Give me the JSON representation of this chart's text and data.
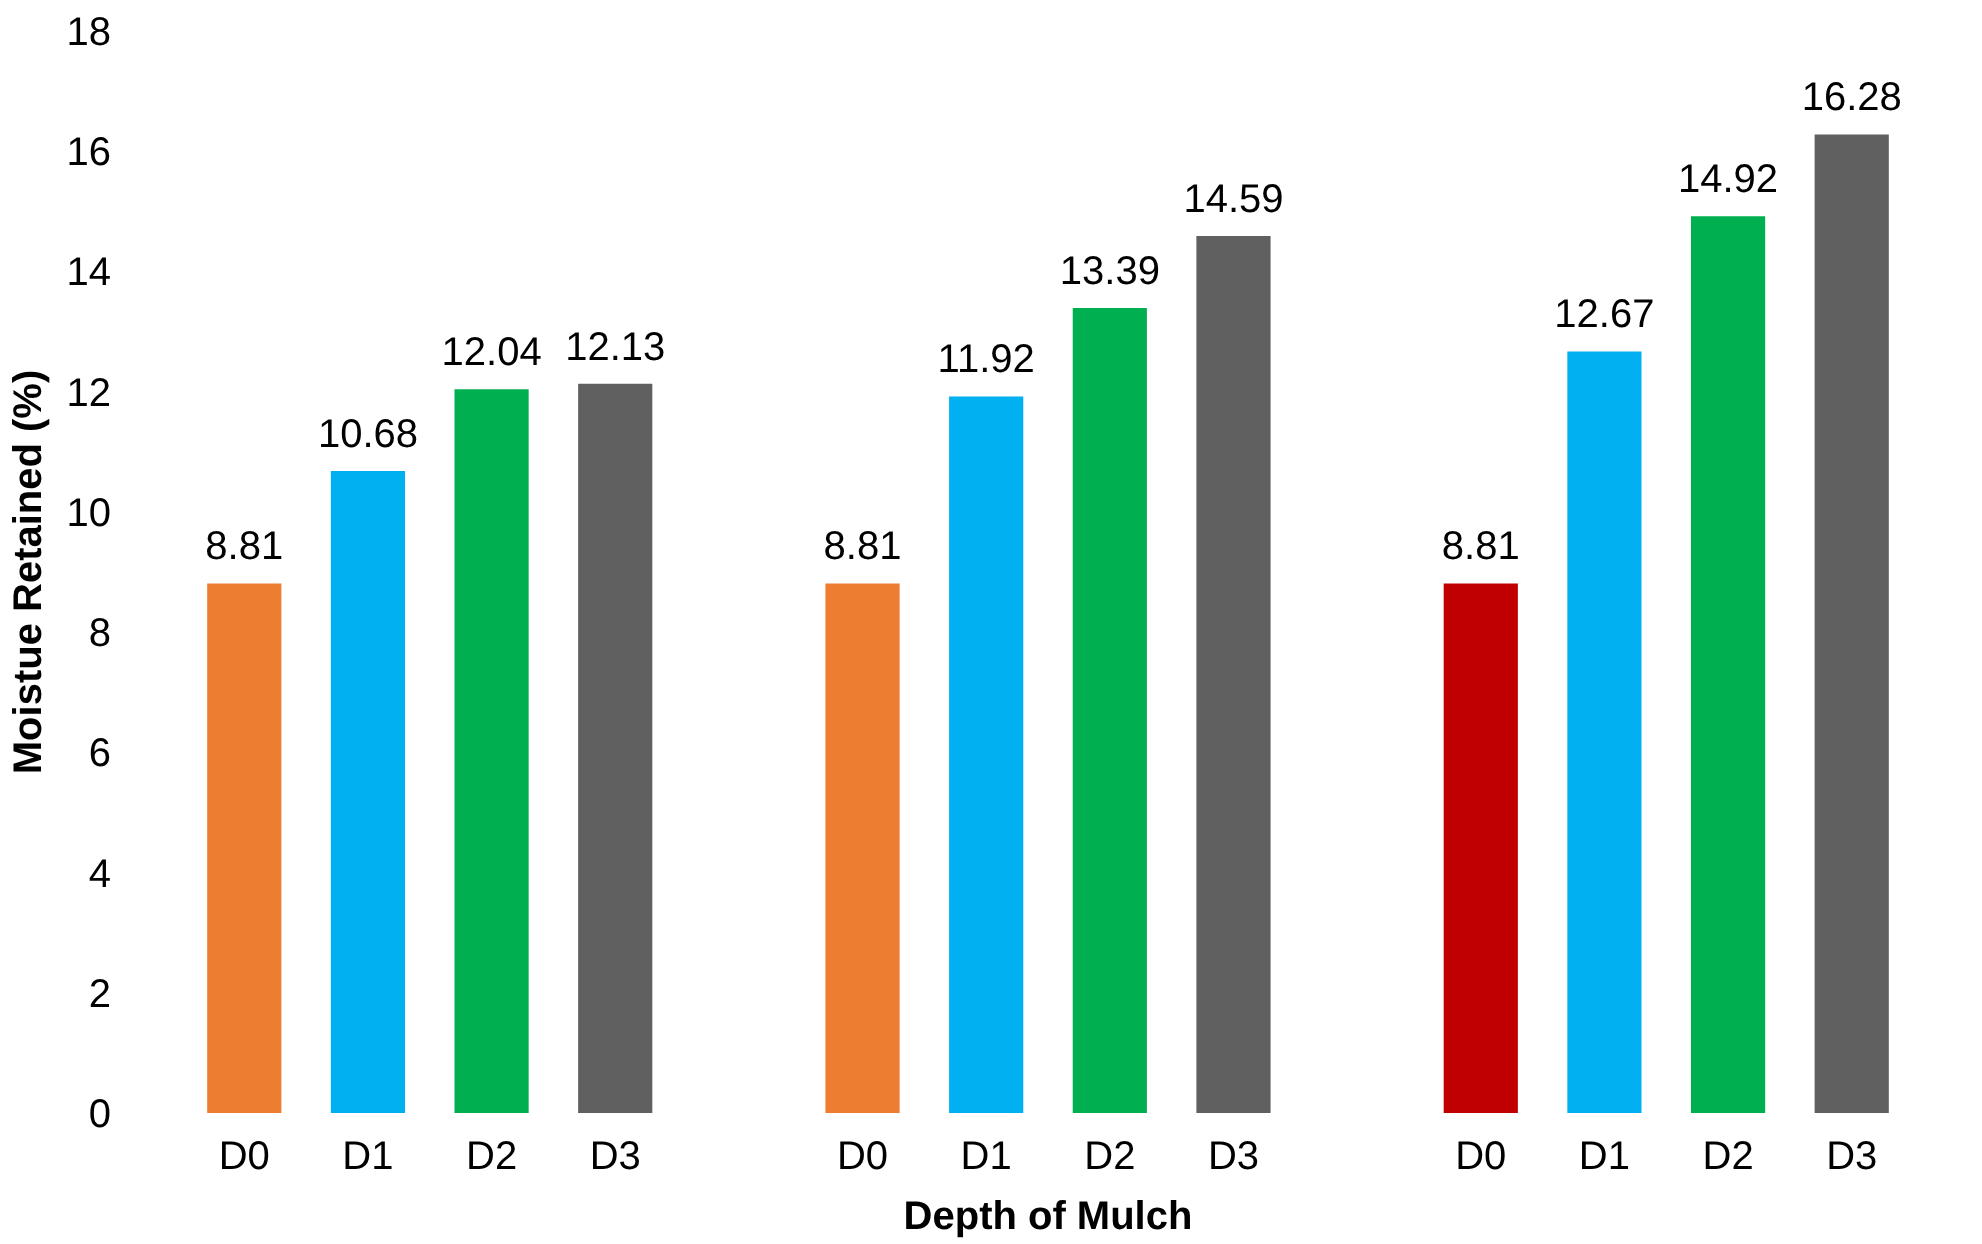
{
  "chart_data": {
    "type": "bar",
    "xlabel": "Depth of Mulch",
    "ylabel": "Moistue Retained (%)",
    "categories": [
      "D0",
      "D1",
      "D2",
      "D3",
      null,
      "D0",
      "D1",
      "D2",
      "D3",
      null,
      "D0",
      "D1",
      "D2",
      "D3"
    ],
    "values": [
      8.81,
      10.68,
      12.04,
      12.13,
      null,
      8.81,
      11.92,
      13.39,
      14.59,
      null,
      8.81,
      12.67,
      14.92,
      16.28
    ],
    "colors": [
      "#ed7d31",
      "#00b0f0",
      "#00b050",
      "#606060",
      null,
      "#ed7d31",
      "#00b0f0",
      "#00b050",
      "#606060",
      null,
      "#c00000",
      "#00b0f0",
      "#00b050",
      "#606060"
    ],
    "ylim": [
      0,
      18
    ],
    "yticks": [
      0,
      2,
      4,
      6,
      8,
      10,
      12,
      14,
      16,
      18
    ],
    "data_labels": true,
    "grid": false
  }
}
